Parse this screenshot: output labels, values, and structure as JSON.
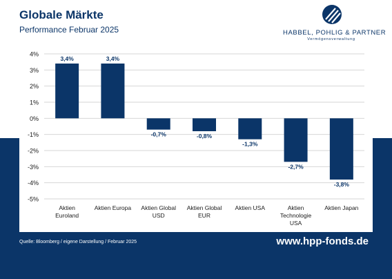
{
  "header": {
    "title": "Globale Märkte",
    "subtitle": "Performance Februar 2025"
  },
  "logo": {
    "name": "HABBEL, POHLIG & PARTNER",
    "tagline": "Vermögensverwaltung",
    "icon": "hpp-logo-mark"
  },
  "footer": {
    "source": "Quelle: Bloomberg / eigene Darstellung / Februar 2025",
    "url": "www.hpp-fonds.de"
  },
  "colors": {
    "navy": "#0b3568",
    "grid": "#d6d6d6"
  },
  "chart_data": {
    "type": "bar",
    "categories": [
      [
        "Aktien",
        "Euroland"
      ],
      [
        "Aktien Europa"
      ],
      [
        "Aktien Global",
        "USD"
      ],
      [
        "Aktien Global",
        "EUR"
      ],
      [
        "Aktien USA"
      ],
      [
        "Aktien",
        "Technologie",
        "USA"
      ],
      [
        "Aktien Japan"
      ]
    ],
    "values": [
      3.4,
      3.4,
      -0.7,
      -0.8,
      -1.3,
      -2.7,
      -3.8
    ],
    "value_labels": [
      "3,4%",
      "3,4%",
      "-0,7%",
      "-0,8%",
      "-1,3%",
      "-2,7%",
      "-3,8%"
    ],
    "yticks": [
      4,
      3,
      2,
      1,
      0,
      -1,
      -2,
      -3,
      -4,
      -5
    ],
    "ytick_labels": [
      "4%",
      "3%",
      "2%",
      "1%",
      "0%",
      "-1%",
      "-2%",
      "-3%",
      "-4%",
      "-5%"
    ],
    "ylim": [
      -5,
      4
    ],
    "grid": true,
    "legend": false
  }
}
